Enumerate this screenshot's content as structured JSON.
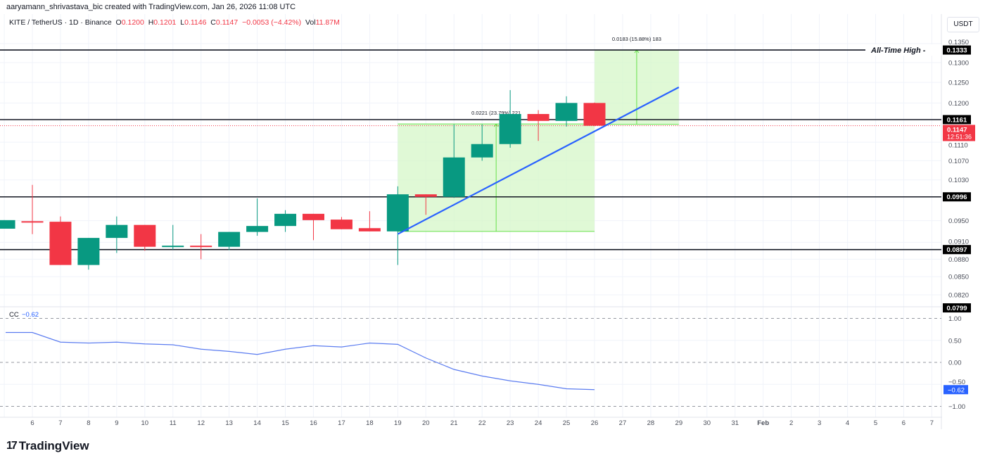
{
  "credit": "aaryamann_shrivastava_bic created with TradingView.com, Jan 26, 2026 11:08 UTC",
  "legend": {
    "symbol": "KITE / TetherUS · 1D · Binance",
    "open_label": "O",
    "open": "0.1200",
    "high_label": "H",
    "high": "0.1201",
    "low_label": "L",
    "low": "0.1146",
    "close_label": "C",
    "close": "0.1147",
    "change": "−0.0053 (−4.42%)",
    "vol_label": "Vol",
    "vol": "11.87M"
  },
  "currency_button": "USDT",
  "logo_text": "TradingView",
  "colors": {
    "up": "#089981",
    "down": "#f23645",
    "trend": "#2962ff",
    "cc": "#5b7cf0",
    "range_fill": "#d6f7c8",
    "range_line": "#66e04a"
  },
  "chart_data": [
    {
      "type": "candlestick",
      "scale": "log",
      "ylim": [
        0.0799,
        0.136
      ],
      "y_ticks": [
        "0.1350",
        "0.1300",
        "0.1250",
        "0.1200",
        "0.1110",
        "0.1070",
        "0.1030",
        "0.0950",
        "0.0910",
        "0.0880",
        "0.0850",
        "0.0820"
      ],
      "x_ticks": [
        "6",
        "7",
        "8",
        "9",
        "10",
        "11",
        "12",
        "13",
        "14",
        "15",
        "16",
        "17",
        "18",
        "19",
        "20",
        "21",
        "22",
        "23",
        "24",
        "25",
        "26",
        "27",
        "28",
        "29",
        "30",
        "31",
        "Feb",
        "2",
        "3",
        "4",
        "5",
        "6",
        "7"
      ],
      "candles": [
        {
          "date": "Jan 5",
          "o": 0.0935,
          "h": 0.0951,
          "l": 0.0935,
          "c": 0.0951
        },
        {
          "date": "Jan 6",
          "o": 0.0949,
          "h": 0.102,
          "l": 0.0925,
          "c": 0.0948
        },
        {
          "date": "Jan 7",
          "o": 0.0948,
          "h": 0.0958,
          "l": 0.087,
          "c": 0.087
        },
        {
          "date": "Jan 8",
          "o": 0.087,
          "h": 0.0918,
          "l": 0.0862,
          "c": 0.0918
        },
        {
          "date": "Jan 9",
          "o": 0.0918,
          "h": 0.0958,
          "l": 0.0891,
          "c": 0.0942
        },
        {
          "date": "Jan 10",
          "o": 0.0942,
          "h": 0.0942,
          "l": 0.0895,
          "c": 0.0902
        },
        {
          "date": "Jan 11",
          "o": 0.0902,
          "h": 0.0942,
          "l": 0.0897,
          "c": 0.0904
        },
        {
          "date": "Jan 12",
          "o": 0.0904,
          "h": 0.0925,
          "l": 0.088,
          "c": 0.0902
        },
        {
          "date": "Jan 13",
          "o": 0.0902,
          "h": 0.0929,
          "l": 0.0896,
          "c": 0.0929
        },
        {
          "date": "Jan 14",
          "o": 0.0929,
          "h": 0.0993,
          "l": 0.0922,
          "c": 0.094
        },
        {
          "date": "Jan 15",
          "o": 0.094,
          "h": 0.097,
          "l": 0.0929,
          "c": 0.0963
        },
        {
          "date": "Jan 16",
          "o": 0.0963,
          "h": 0.0963,
          "l": 0.0914,
          "c": 0.0951
        },
        {
          "date": "Jan 17",
          "o": 0.0952,
          "h": 0.0957,
          "l": 0.0934,
          "c": 0.0934
        },
        {
          "date": "Jan 18",
          "o": 0.0936,
          "h": 0.0968,
          "l": 0.093,
          "c": 0.093
        },
        {
          "date": "Jan 19",
          "o": 0.093,
          "h": 0.1017,
          "l": 0.087,
          "c": 0.1001
        },
        {
          "date": "Jan 20",
          "o": 0.1001,
          "h": 0.1001,
          "l": 0.0961,
          "c": 0.0996
        },
        {
          "date": "Jan 21",
          "o": 0.0996,
          "h": 0.115,
          "l": 0.0994,
          "c": 0.1077
        },
        {
          "date": "Jan 22",
          "o": 0.1077,
          "h": 0.115,
          "l": 0.107,
          "c": 0.1106
        },
        {
          "date": "Jan 23",
          "o": 0.1106,
          "h": 0.1231,
          "l": 0.1098,
          "c": 0.1174
        },
        {
          "date": "Jan 24",
          "o": 0.1174,
          "h": 0.1183,
          "l": 0.1113,
          "c": 0.1158
        },
        {
          "date": "Jan 25",
          "o": 0.1158,
          "h": 0.1216,
          "l": 0.1145,
          "c": 0.12
        },
        {
          "date": "Jan 26",
          "o": 0.12,
          "h": 0.1201,
          "l": 0.1146,
          "c": 0.1147
        }
      ],
      "horizontal_levels": [
        {
          "value": 0.1333,
          "label": "0.1333",
          "annotation": "All-Time High"
        },
        {
          "value": 0.1161,
          "label": "0.1161"
        },
        {
          "value": 0.0996,
          "label": "0.0996"
        },
        {
          "value": 0.0897,
          "label": "0.0897"
        },
        {
          "value": 0.0799,
          "label": "0.0799"
        }
      ],
      "last_price": {
        "label": "0.1147",
        "countdown": "12:51:36"
      },
      "trend_line": {
        "from": {
          "date": "Jan 19",
          "price": 0.0925
        },
        "to": {
          "date": "Jan 29",
          "price": 0.1238
        }
      },
      "price_ranges": [
        {
          "from_date": "Jan 19",
          "to_date": "Jan 26",
          "from_price": 0.093,
          "to_price": 0.1151,
          "label": "0.0221 (23.79%) 221"
        },
        {
          "from_date": "Jan 26",
          "to_date": "Jan 29",
          "from_price": 0.115,
          "to_price": 0.1333,
          "label": "0.0183 (15.88%) 183"
        }
      ]
    },
    {
      "type": "line",
      "title": "CC",
      "current_value": "−0.62",
      "ylim": [
        -1.0,
        1.0
      ],
      "y_ticks": [
        "1.00",
        "0.50",
        "0.00",
        "−0.50",
        "−1.00"
      ],
      "dashed_levels": [
        1.0,
        0.0,
        -1.0
      ],
      "x": [
        "Jan 5",
        "Jan 6",
        "Jan 7",
        "Jan 8",
        "Jan 9",
        "Jan 10",
        "Jan 11",
        "Jan 12",
        "Jan 13",
        "Jan 14",
        "Jan 15",
        "Jan 16",
        "Jan 17",
        "Jan 18",
        "Jan 19",
        "Jan 20",
        "Jan 21",
        "Jan 22",
        "Jan 23",
        "Jan 24",
        "Jan 25",
        "Jan 26"
      ],
      "values": [
        0.68,
        0.68,
        0.46,
        0.44,
        0.46,
        0.42,
        0.4,
        0.3,
        0.25,
        0.18,
        0.3,
        0.38,
        0.35,
        0.44,
        0.41,
        0.1,
        -0.16,
        -0.31,
        -0.42,
        -0.5,
        -0.6,
        -0.62
      ]
    }
  ]
}
